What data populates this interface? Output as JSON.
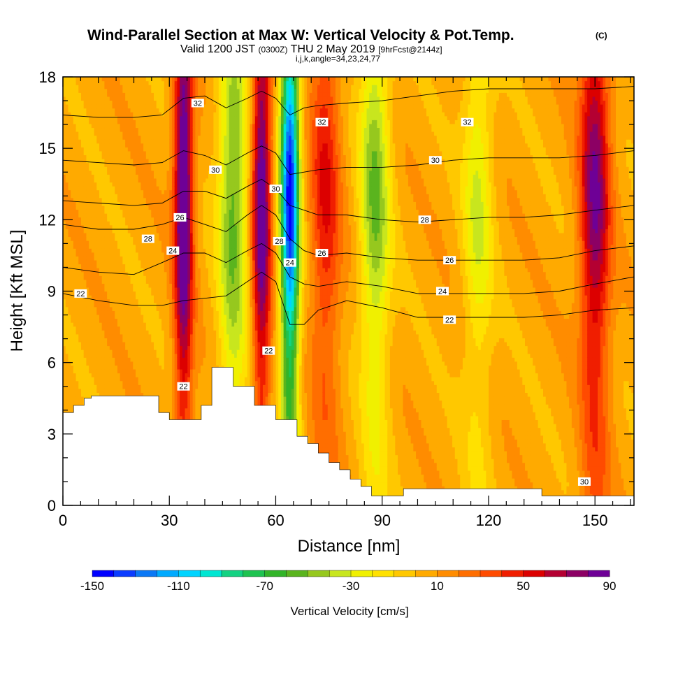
{
  "title_main": "Wind-Parallel Section at Max W: Vertical Velocity & Pot.Temp.",
  "title_unit": "(C)",
  "subtitle_pre": "Valid 1200 JST",
  "subtitle_utc": "(0300Z)",
  "subtitle_mid": "THU 2 May 2019",
  "subtitle_fcst": "[9hrFcst@2144z]",
  "subtitle_2": "i,j,k,angle=34,23,24,77",
  "colors": {
    "background": "#ffffff",
    "palette": [
      "#0000ff",
      "#0b3cff",
      "#0a78f5",
      "#00aaff",
      "#00d4ff",
      "#00e6d2",
      "#14d282",
      "#1ec350",
      "#32b428",
      "#5ab41e",
      "#96c81e",
      "#c8e61e",
      "#f0f000",
      "#ffe100",
      "#ffc800",
      "#ffaa00",
      "#ff8c00",
      "#ff6e00",
      "#ff4b00",
      "#f01e00",
      "#dc0000",
      "#b40032",
      "#8c0064",
      "#6e0096"
    ]
  },
  "chart_data": {
    "type": "heatmap",
    "title": "Wind-Parallel Section at Max W: Vertical Velocity & Pot.Temp. (C)",
    "xlabel": "Distance [nm]",
    "ylabel": "Height [Kft MSL]",
    "xlim": [
      0,
      161
    ],
    "ylim": [
      0,
      18
    ],
    "xticks": [
      0,
      30,
      60,
      90,
      120,
      150
    ],
    "yticks": [
      0,
      3,
      6,
      9,
      12,
      15,
      18
    ],
    "colorbar": {
      "label": "Vertical Velocity [cm/s]",
      "min": -150,
      "step": 10,
      "bins": 24,
      "ticks": [
        -150,
        -110,
        -70,
        -30,
        10,
        50,
        90
      ]
    },
    "vertical_velocity_features": [
      {
        "x": 34,
        "kind": "updraft",
        "peak": 100
      },
      {
        "x": 48,
        "kind": "downdraft",
        "peak": -60
      },
      {
        "x": 56,
        "kind": "updraft",
        "peak": 90
      },
      {
        "x": 64,
        "kind": "downdraft",
        "peak": -150
      },
      {
        "x": 74,
        "kind": "updraft",
        "peak": 45
      },
      {
        "x": 88,
        "kind": "downdraft",
        "peak": -55
      },
      {
        "x": 117,
        "kind": "downdraft",
        "peak": -35
      },
      {
        "x": 150,
        "kind": "updraft",
        "peak": 75
      }
    ],
    "potential_temperature_contours": [
      {
        "label": "22",
        "x": [
          0,
          10,
          20,
          28,
          34,
          40,
          46,
          52,
          56,
          60,
          64,
          68,
          72,
          80,
          90,
          100,
          110,
          120,
          130,
          140,
          150,
          161
        ],
        "y": [
          8.9,
          8.6,
          8.4,
          8.4,
          8.6,
          8.7,
          8.8,
          9.4,
          9.8,
          9.4,
          7.6,
          7.6,
          8.2,
          8.6,
          8.3,
          7.9,
          7.9,
          7.9,
          7.9,
          8.0,
          8.2,
          8.3
        ]
      },
      {
        "label": "24",
        "x": [
          0,
          10,
          20,
          28,
          34,
          40,
          46,
          52,
          56,
          60,
          64,
          68,
          72,
          80,
          90,
          100,
          110,
          120,
          130,
          140,
          150,
          161
        ],
        "y": [
          10.0,
          9.8,
          9.7,
          10.2,
          10.6,
          10.6,
          10.2,
          10.7,
          11.0,
          10.6,
          9.6,
          9.3,
          9.2,
          9.4,
          9.2,
          8.9,
          8.9,
          8.9,
          8.9,
          9.0,
          9.3,
          9.6
        ]
      },
      {
        "label": "26",
        "x": [
          0,
          10,
          20,
          28,
          34,
          40,
          46,
          52,
          56,
          60,
          64,
          68,
          72,
          80,
          90,
          100,
          110,
          120,
          130,
          140,
          150,
          161
        ],
        "y": [
          11.8,
          11.6,
          11.6,
          11.8,
          12.1,
          11.8,
          11.5,
          12.2,
          12.6,
          12.2,
          11.2,
          10.7,
          10.5,
          10.6,
          10.4,
          10.3,
          10.3,
          10.3,
          10.3,
          10.4,
          10.7,
          10.9
        ]
      },
      {
        "label": "28",
        "x": [
          0,
          10,
          20,
          28,
          34,
          40,
          46,
          52,
          56,
          60,
          64,
          68,
          72,
          80,
          90,
          100,
          110,
          120,
          130,
          140,
          150,
          161
        ],
        "y": [
          12.8,
          12.7,
          12.6,
          12.7,
          13.2,
          13.2,
          12.9,
          13.4,
          13.7,
          13.3,
          12.6,
          12.4,
          12.2,
          12.2,
          12.0,
          11.9,
          12.0,
          12.1,
          12.1,
          12.2,
          12.4,
          12.6
        ]
      },
      {
        "label": "30",
        "x": [
          0,
          10,
          20,
          28,
          34,
          40,
          46,
          52,
          56,
          60,
          64,
          68,
          72,
          80,
          90,
          100,
          110,
          120,
          130,
          140,
          150,
          161
        ],
        "y": [
          14.5,
          14.4,
          14.3,
          14.4,
          14.9,
          14.7,
          14.3,
          14.8,
          15.1,
          14.8,
          13.9,
          14.0,
          14.1,
          14.2,
          14.2,
          14.3,
          14.5,
          14.6,
          14.6,
          14.6,
          14.7,
          14.9
        ]
      },
      {
        "label": "32",
        "x": [
          0,
          10,
          20,
          28,
          34,
          40,
          46,
          52,
          56,
          60,
          64,
          68,
          72,
          80,
          90,
          100,
          110,
          120,
          130,
          140,
          150,
          161
        ],
        "y": [
          16.4,
          16.3,
          16.3,
          16.4,
          17.1,
          17.2,
          16.7,
          17.1,
          17.4,
          17.1,
          16.4,
          16.7,
          16.8,
          16.9,
          17.0,
          17.2,
          17.4,
          17.5,
          17.5,
          17.5,
          17.5,
          17.6
        ]
      }
    ],
    "contour_labels": [
      {
        "text": "22",
        "x": 5,
        "y": 8.9
      },
      {
        "text": "22",
        "x": 109,
        "y": 7.8
      },
      {
        "text": "22",
        "x": 34,
        "y": 5.0
      },
      {
        "text": "22",
        "x": 58,
        "y": 6.5
      },
      {
        "text": "24",
        "x": 31,
        "y": 10.7
      },
      {
        "text": "24",
        "x": 107,
        "y": 9.0
      },
      {
        "text": "24",
        "x": 64,
        "y": 10.2
      },
      {
        "text": "26",
        "x": 33,
        "y": 12.1
      },
      {
        "text": "26",
        "x": 73,
        "y": 10.6
      },
      {
        "text": "26",
        "x": 109,
        "y": 10.3
      },
      {
        "text": "28",
        "x": 24,
        "y": 11.2
      },
      {
        "text": "28",
        "x": 61,
        "y": 11.1
      },
      {
        "text": "28",
        "x": 102,
        "y": 12.0
      },
      {
        "text": "30",
        "x": 43,
        "y": 14.1
      },
      {
        "text": "30",
        "x": 60,
        "y": 13.3
      },
      {
        "text": "30",
        "x": 105,
        "y": 14.5
      },
      {
        "text": "30",
        "x": 147,
        "y": 1.0
      },
      {
        "text": "32",
        "x": 38,
        "y": 16.9
      },
      {
        "text": "32",
        "x": 73,
        "y": 16.1
      },
      {
        "text": "32",
        "x": 114,
        "y": 16.1
      }
    ],
    "terrain": {
      "x": [
        0,
        3,
        3,
        6,
        6,
        8,
        8,
        27,
        27,
        30,
        30,
        39,
        39,
        42,
        42,
        48,
        48,
        54,
        54,
        57,
        57,
        60,
        60,
        66,
        66,
        69,
        69,
        72,
        72,
        75,
        75,
        78,
        78,
        81,
        81,
        84,
        84,
        87,
        87,
        90,
        90,
        93,
        93,
        96,
        96,
        135,
        135,
        141,
        141,
        161
      ],
      "y": [
        3.9,
        3.9,
        4.2,
        4.2,
        4.5,
        4.5,
        4.6,
        4.6,
        3.9,
        3.9,
        3.6,
        3.6,
        4.2,
        4.2,
        5.8,
        5.8,
        5.0,
        5.0,
        4.2,
        4.2,
        4.2,
        4.2,
        3.6,
        3.6,
        2.9,
        2.9,
        2.6,
        2.6,
        2.2,
        2.2,
        1.8,
        1.8,
        1.5,
        1.5,
        1.1,
        1.1,
        0.8,
        0.8,
        0.4,
        0.4,
        0.4,
        0.4,
        0.4,
        0.4,
        0.7,
        0.7,
        0.4,
        0.4,
        0.4,
        0.4
      ]
    }
  }
}
